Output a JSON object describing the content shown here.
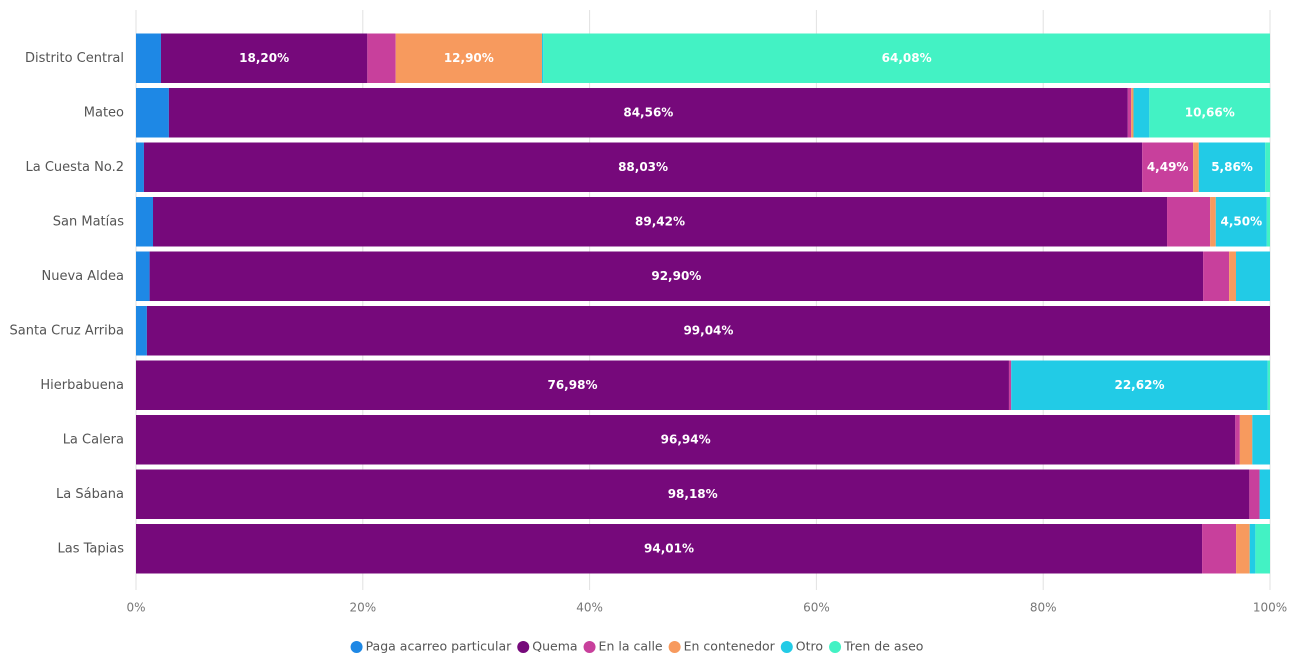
{
  "chart_data": {
    "type": "bar",
    "orientation": "horizontal",
    "stacked": true,
    "categories": [
      "Distrito Central",
      "Mateo",
      "La Cuesta No.2",
      "San Matías",
      "Nueva Aldea",
      "Santa Cruz Arriba",
      "Hierbabuena",
      "La Calera",
      "La Sábana",
      "Las Tapias"
    ],
    "series": [
      {
        "name": "Paga acarreo particular",
        "color": "#1e88e5",
        "values": [
          2.2,
          2.9,
          0.7,
          1.5,
          1.2,
          0.96,
          0,
          0,
          0,
          0
        ]
      },
      {
        "name": "Quema",
        "color": "#76097b",
        "values": [
          18.2,
          84.56,
          88.03,
          89.42,
          92.9,
          99.04,
          76.98,
          96.94,
          98.18,
          94.01
        ],
        "value_labels": [
          "18,20%",
          "84,56%",
          "88,03%",
          "89,42%",
          "92,90%",
          "99,04%",
          "76,98%",
          "96,94%",
          "98,18%",
          "94,01%"
        ]
      },
      {
        "name": "En la calle",
        "color": "#c8409c",
        "values": [
          2.5,
          0.3,
          4.49,
          3.8,
          2.3,
          0,
          0.2,
          0.4,
          0.9,
          3.0
        ],
        "value_labels": [
          null,
          null,
          "4,49%",
          null,
          null,
          null,
          null,
          null,
          null,
          null
        ]
      },
      {
        "name": "En contenedor",
        "color": "#f79a5e",
        "values": [
          12.9,
          0.2,
          0.5,
          0.5,
          0.6,
          0,
          0,
          1.1,
          0,
          1.2
        ],
        "value_labels": [
          "12,90%",
          null,
          null,
          null,
          null,
          null,
          null,
          null,
          null,
          null
        ]
      },
      {
        "name": "Otro",
        "color": "#22cbe6",
        "values": [
          0.12,
          1.4,
          5.86,
          4.5,
          3.0,
          0,
          22.62,
          1.56,
          0.92,
          0.5
        ],
        "value_labels": [
          null,
          null,
          "5,86%",
          "4,50%",
          null,
          null,
          "22,62%",
          null,
          null,
          null
        ]
      },
      {
        "name": "Tren de aseo",
        "color": "#43f2c4",
        "values": [
          64.08,
          10.66,
          0.42,
          0.28,
          0,
          0,
          0.2,
          0,
          0,
          1.29
        ],
        "value_labels": [
          "64,08%",
          "10,66%",
          null,
          null,
          null,
          null,
          null,
          null,
          null,
          null
        ]
      }
    ],
    "xlim": [
      0,
      100
    ],
    "xticks": [
      {
        "value": 0,
        "label": "0%"
      },
      {
        "value": 20,
        "label": "20%"
      },
      {
        "value": 40,
        "label": "40%"
      },
      {
        "value": 60,
        "label": "60%"
      },
      {
        "value": 80,
        "label": "80%"
      },
      {
        "value": 100,
        "label": "100%"
      }
    ],
    "grid": true,
    "legend": "bottom"
  }
}
